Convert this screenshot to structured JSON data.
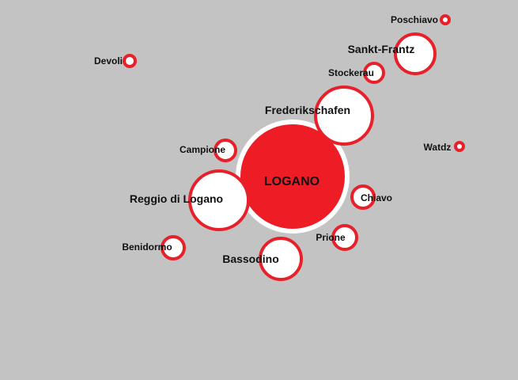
{
  "colors": {
    "background": "#c3c3c3",
    "ring": "#e8202a",
    "fill": "#ffffff",
    "center_fill": "#ee1c25",
    "label": "#111111"
  },
  "center": {
    "label": "LOGANO"
  },
  "places": [
    {
      "id": "poschiavo",
      "label": "Poschiavo"
    },
    {
      "id": "sankt-frantz",
      "label": "Sankt-Frantz"
    },
    {
      "id": "devoli",
      "label": "Devoli"
    },
    {
      "id": "stockerau",
      "label": "Stockerau"
    },
    {
      "id": "frederikschafen",
      "label": "Frederikschafen"
    },
    {
      "id": "campione",
      "label": "Campione"
    },
    {
      "id": "watdz",
      "label": "Watdz"
    },
    {
      "id": "reggio-di-logano",
      "label": "Reggio di Logano"
    },
    {
      "id": "chiavo",
      "label": "Chiavo"
    },
    {
      "id": "prione",
      "label": "Prione"
    },
    {
      "id": "benidormo",
      "label": "Benidormo"
    },
    {
      "id": "bassodino",
      "label": "Bassodino"
    }
  ]
}
